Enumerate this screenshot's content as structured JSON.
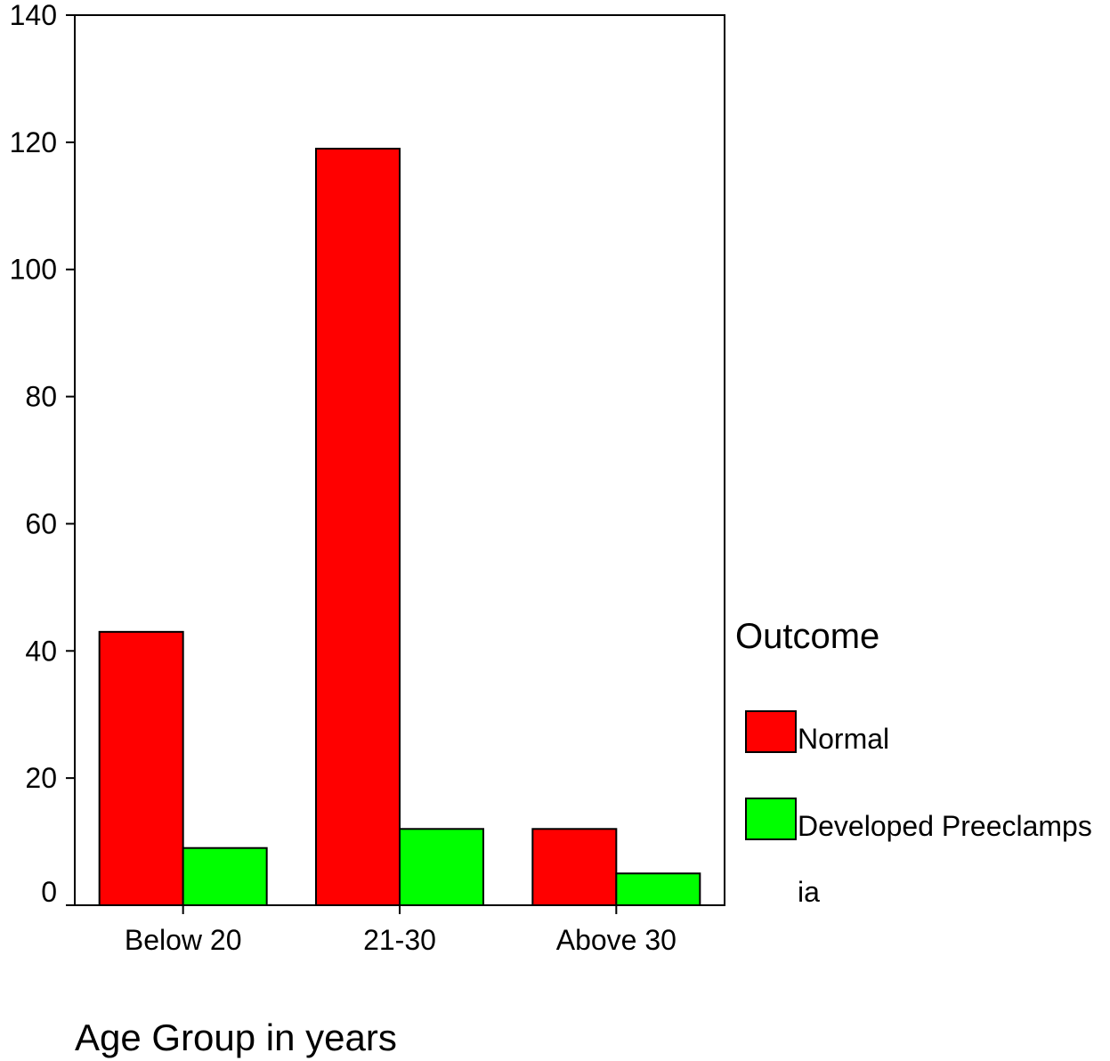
{
  "chart_data": {
    "type": "bar",
    "categories": [
      "Below 20",
      "21-30",
      "Above 30"
    ],
    "series": [
      {
        "name": "Normal",
        "values": [
          43,
          119,
          12
        ],
        "color": "#ff0000"
      },
      {
        "name": "Developed Preeclampsia",
        "values": [
          9,
          12,
          5
        ],
        "color": "#00ff00"
      }
    ],
    "legend_label_lines": [
      [
        "Normal"
      ],
      [
        "Developed Preeclamps",
        "ia"
      ]
    ],
    "legend_title": "Outcome",
    "legend_position": "right",
    "title": "",
    "xlabel": "Age Group in years",
    "ylabel": "",
    "ylim": [
      0,
      140
    ],
    "yticks": [
      0,
      20,
      40,
      60,
      80,
      100,
      120,
      140
    ],
    "grid": false
  }
}
